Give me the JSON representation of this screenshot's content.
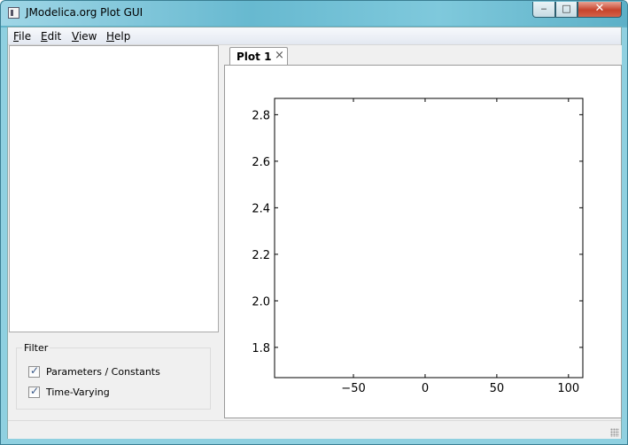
{
  "window": {
    "title": "JModelica.org Plot GUI",
    "min_glyph": "‒",
    "max_glyph": "□",
    "close_glyph": "✕"
  },
  "menubar": {
    "items": [
      {
        "mnemonic": "F",
        "rest": "ile"
      },
      {
        "mnemonic": "E",
        "rest": "dit"
      },
      {
        "mnemonic": "V",
        "rest": "iew"
      },
      {
        "mnemonic": "H",
        "rest": "elp"
      }
    ]
  },
  "filter": {
    "title": "Filter",
    "options": [
      {
        "label": "Parameters / Constants",
        "checked": true
      },
      {
        "label": "Time-Varying",
        "checked": true
      }
    ],
    "check_glyph": "✓"
  },
  "tabs": [
    {
      "label": "Plot 1",
      "close_glyph": "×"
    }
  ],
  "chart_data": {
    "type": "line",
    "title": "",
    "xlabel": "",
    "ylabel": "",
    "series": [],
    "xlim": [
      -105,
      110
    ],
    "ylim": [
      1.67,
      2.87
    ],
    "xticks": [
      -50,
      0,
      50,
      100
    ],
    "xtick_labels": [
      "−50",
      "0",
      "50",
      "100"
    ],
    "yticks": [
      1.8,
      2.0,
      2.2,
      2.4,
      2.6,
      2.8
    ],
    "ytick_labels": [
      "1.8",
      "2.0",
      "2.2",
      "2.4",
      "2.6",
      "2.8"
    ],
    "grid": false
  }
}
